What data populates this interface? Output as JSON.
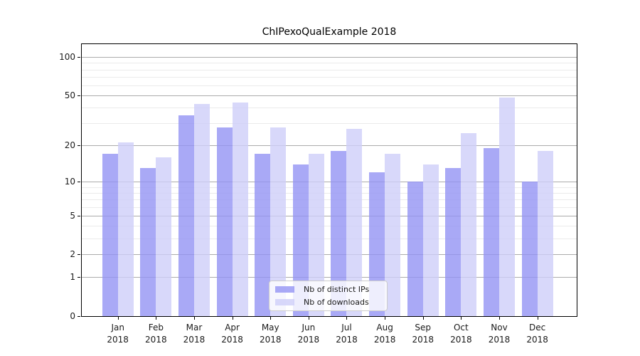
{
  "title": "ChIPexoQualExample 2018",
  "chart_data": {
    "type": "bar",
    "title": "ChIPexoQualExample 2018",
    "xlabel": "",
    "ylabel": "",
    "categories": [
      "Jan 2018",
      "Feb 2018",
      "Mar 2018",
      "Apr 2018",
      "May 2018",
      "Jun 2018",
      "Jul 2018",
      "Aug 2018",
      "Sep 2018",
      "Oct 2018",
      "Nov 2018",
      "Dec 2018"
    ],
    "series": [
      {
        "name": "Nb of distinct IPs",
        "color": "#9393f4",
        "values": [
          17,
          13,
          35,
          28,
          17,
          14,
          18,
          12,
          10,
          13,
          19,
          10
        ]
      },
      {
        "name": "Nb of downloads",
        "color": "#cecef9",
        "values": [
          21,
          16,
          43,
          44,
          28,
          17,
          27,
          17,
          14,
          25,
          48,
          18
        ]
      }
    ],
    "bar_alpha": 0.8,
    "yscale": "log1p",
    "ylim": [
      0,
      127
    ],
    "yticks_major": [
      0,
      1,
      2,
      5,
      10,
      20,
      50,
      100
    ],
    "yticks_minor": [
      3,
      4,
      6,
      7,
      8,
      9,
      30,
      40,
      60,
      70,
      80,
      90
    ],
    "grid": true,
    "legend_position": "lower center",
    "colors": {
      "major_grid": "#ababab",
      "minor_grid": "#ebebeb",
      "axis": "#000000",
      "text": "#1a1a1a",
      "legend_border": "#cccccc",
      "legend_bg": "rgba(255,255,255,0.8)"
    }
  }
}
